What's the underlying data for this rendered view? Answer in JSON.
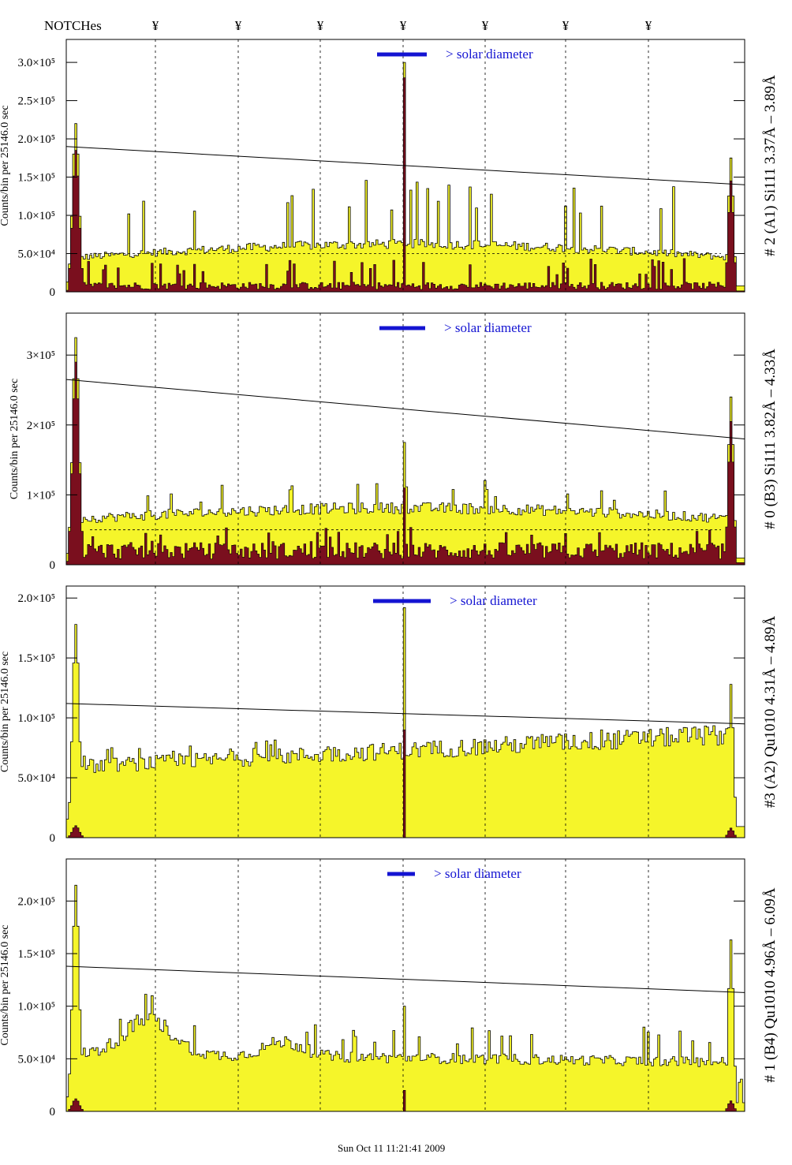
{
  "header": {
    "notches_label": "NOTCHes",
    "notch_marker": "¥"
  },
  "footer": {
    "timestamp": "Sun Oct 11 11:21:41 2009"
  },
  "colors": {
    "total_fill": "#f5f52a",
    "subset_fill": "#7a0f1e",
    "solar_bar": "#1414d2",
    "axis": "#000000"
  },
  "chart_data": [
    {
      "type": "area",
      "panel_label": "# 2 (A1) Si111  3.37Å – 3.89Å",
      "ylabel": "Counts/bin per  25146.0 sec",
      "solar_label": "> solar diameter",
      "ylim": [
        0,
        330000
      ],
      "yticks": [
        {
          "value": 0,
          "label": "0"
        },
        {
          "value": 50000,
          "label": "5.0×10⁴"
        },
        {
          "value": 100000,
          "label": "1.0×10⁵"
        },
        {
          "value": 150000,
          "label": "1.5×10⁵"
        },
        {
          "value": 200000,
          "label": "2.0×10⁵"
        },
        {
          "value": 250000,
          "label": "2.5×10⁵"
        },
        {
          "value": 300000,
          "label": "3.0×10⁵"
        }
      ],
      "trend_line": [
        190000,
        140000
      ],
      "dashed_level": 50000,
      "total": {
        "base": 52000,
        "shape": "arch",
        "edge_peak": 220000,
        "right_peak": 175000,
        "center_peak": 300000,
        "spike_height": 85000
      },
      "subset": {
        "base": 8000,
        "edge_peak": 185000,
        "right_peak": 145000,
        "center_peak": 280000,
        "spike_height": 35000
      }
    },
    {
      "type": "area",
      "panel_label": "# 0 (B3) Si111  3.82Å – 4.33Å",
      "ylabel": "Counts/bin per  25146.0 sec",
      "solar_label": "> solar diameter",
      "ylim": [
        0,
        360000
      ],
      "yticks": [
        {
          "value": 0,
          "label": "0"
        },
        {
          "value": 100000,
          "label": "1×10⁵"
        },
        {
          "value": 200000,
          "label": "2×10⁵"
        },
        {
          "value": 300000,
          "label": "3×10⁵"
        }
      ],
      "trend_line": [
        265000,
        180000
      ],
      "dashed_level": 50000,
      "total": {
        "base": 65000,
        "shape": "flat",
        "edge_peak": 325000,
        "right_peak": 240000,
        "center_peak": 175000,
        "spike_height": 35000
      },
      "subset": {
        "base": 20000,
        "edge_peak": 290000,
        "right_peak": 205000,
        "center_peak": 110000,
        "spike_height": 25000
      }
    },
    {
      "type": "area",
      "panel_label": "#3 (A2) Qu1010  4.31Å – 4.89Å",
      "ylabel": "Counts/bin per  25146.0 sec",
      "solar_label": "> solar diameter",
      "ylim": [
        0,
        210000
      ],
      "yticks": [
        {
          "value": 0,
          "label": "0"
        },
        {
          "value": 50000,
          "label": "5.0×10⁴"
        },
        {
          "value": 100000,
          "label": "1.0×10⁵"
        },
        {
          "value": 150000,
          "label": "1.5×10⁵"
        },
        {
          "value": 200000,
          "label": "2.0×10⁵"
        }
      ],
      "trend_line": [
        112000,
        95000
      ],
      "dashed_level": null,
      "total": {
        "base": 62000,
        "shape": "rising",
        "edge_peak": 178000,
        "right_peak": 128000,
        "center_peak": 192000,
        "spike_height": 12000
      },
      "subset": {
        "base": 0,
        "edge_peak": 10000,
        "right_peak": 8000,
        "center_peak": 90000,
        "spike_height": 0
      }
    },
    {
      "type": "area",
      "panel_label": "# 1 (B4) Qu1010 4.96Å – 6.09Å",
      "ylabel": "Counts/bin per  25146.0 sec",
      "solar_label": "> solar diameter",
      "ylim": [
        0,
        240000
      ],
      "yticks": [
        {
          "value": 0,
          "label": "0"
        },
        {
          "value": 50000,
          "label": "5.0×10⁴"
        },
        {
          "value": 100000,
          "label": "1.0×10⁵"
        },
        {
          "value": 150000,
          "label": "1.5×10⁵"
        },
        {
          "value": 200000,
          "label": "2.0×10⁵"
        }
      ],
      "trend_line": [
        138000,
        113000
      ],
      "dashed_level": null,
      "total": {
        "base": 55000,
        "shape": "bumpy",
        "edge_peak": 215000,
        "right_peak": 163000,
        "center_peak": 100000,
        "spike_height": 30000
      },
      "subset": {
        "base": 0,
        "edge_peak": 12000,
        "right_peak": 10000,
        "center_peak": 20000,
        "spike_height": 0
      }
    }
  ]
}
